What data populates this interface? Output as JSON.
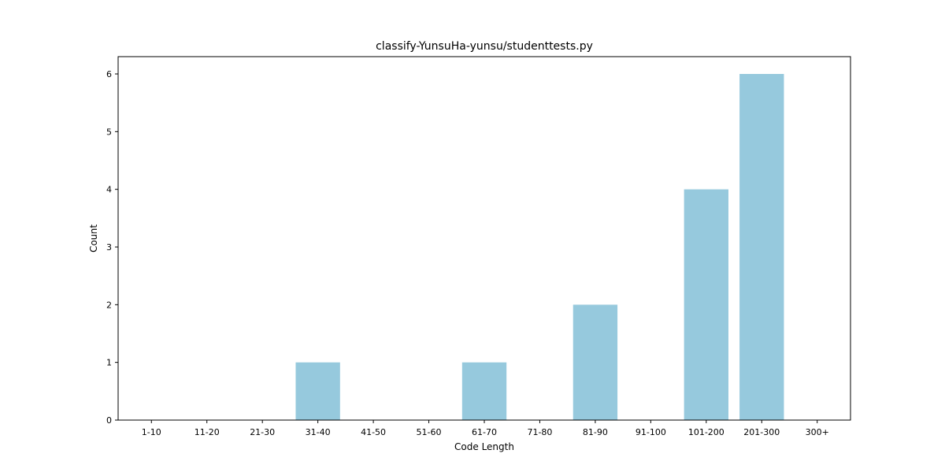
{
  "chart_data": {
    "type": "bar",
    "title": "classify-YunsuHa-yunsu/studenttests.py",
    "xlabel": "Code Length",
    "ylabel": "Count",
    "categories": [
      "1-10",
      "11-20",
      "21-30",
      "31-40",
      "41-50",
      "51-60",
      "61-70",
      "71-80",
      "81-90",
      "91-100",
      "101-200",
      "201-300",
      "300+"
    ],
    "values": [
      0,
      0,
      0,
      1,
      0,
      0,
      1,
      0,
      2,
      0,
      4,
      6,
      0
    ],
    "ylim": [
      0,
      6.3
    ],
    "yticks": [
      0,
      1,
      2,
      3,
      4,
      5,
      6
    ],
    "bar_color": "#96c9dd",
    "grid": false,
    "legend": "none"
  }
}
